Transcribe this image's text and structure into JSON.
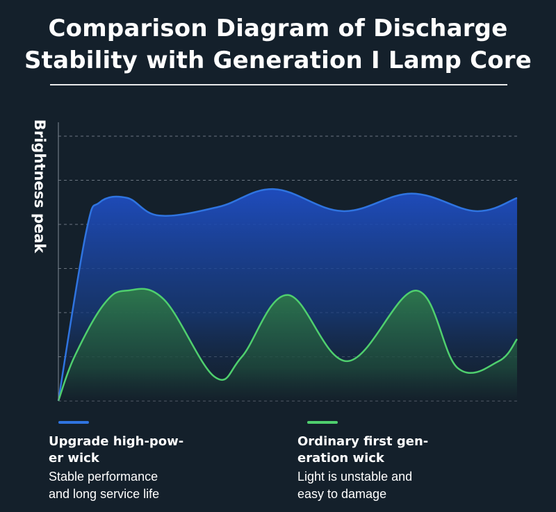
{
  "title_line1": "Comparison Diagram of Discharge",
  "title_line2": "Stability with Generation I Lamp Core",
  "chart_data": {
    "type": "area",
    "title": "Comparison Diagram of Discharge Stability with Generation I Lamp Core",
    "ylabel": "Brightness peak",
    "xlabel": "",
    "ylim": [
      0,
      6
    ],
    "xlim": [
      0,
      10
    ],
    "grid": true,
    "gridlines_y": [
      1,
      2,
      3,
      4,
      5,
      6
    ],
    "series": [
      {
        "name": "Upgrade high-power wick",
        "color": "#2f74e0",
        "x": [
          0,
          0.6,
          0.9,
          1.5,
          2.2,
          3.5,
          4.7,
          6.2,
          7.7,
          9.1,
          10
        ],
        "values": [
          0,
          3.8,
          4.5,
          4.6,
          4.2,
          4.4,
          4.8,
          4.3,
          4.7,
          4.3,
          4.6
        ]
      },
      {
        "name": "Ordinary first generation wick",
        "color": "#4fcf6e",
        "x": [
          0,
          0.35,
          1.0,
          1.5,
          2.3,
          3.4,
          4.0,
          5.0,
          6.3,
          7.8,
          8.7,
          9.6,
          10
        ],
        "values": [
          0,
          1.0,
          2.2,
          2.5,
          2.3,
          0.55,
          1.0,
          2.4,
          0.9,
          2.5,
          0.75,
          0.9,
          1.4
        ]
      }
    ],
    "legend": [
      {
        "label_line1": "Upgrade high-pow-",
        "label_line2": "er wick",
        "desc_line1": "Stable performance",
        "desc_line2": "and long service life",
        "color": "#2f74e0"
      },
      {
        "label_line1": "Ordinary first gen-",
        "label_line2": "eration wick",
        "desc_line1": "Light is unstable and",
        "desc_line2": "easy to damage",
        "color": "#4fcf6e"
      }
    ]
  }
}
